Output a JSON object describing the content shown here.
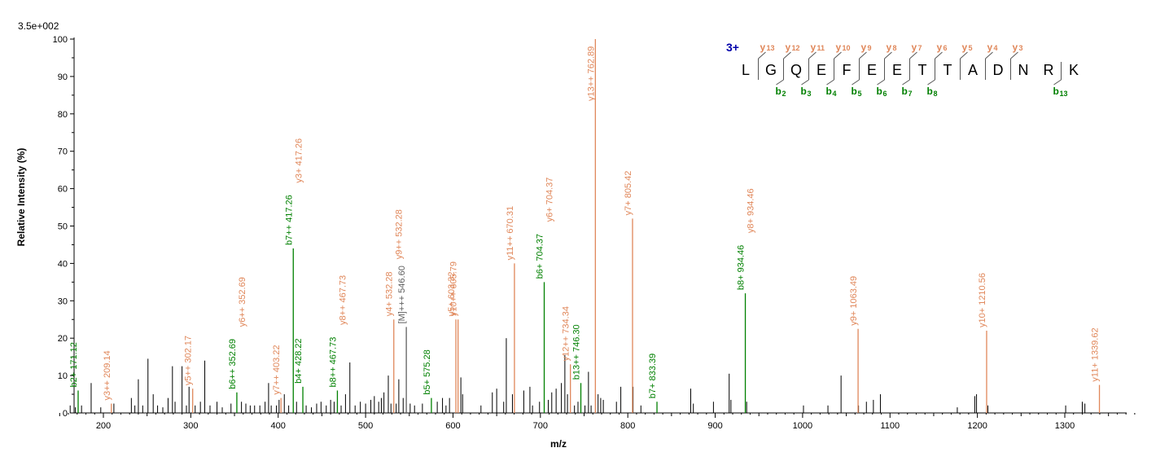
{
  "chart_data": {
    "type": "bar",
    "scale_label": "3.5e+002",
    "xlabel": "m/z",
    "ylabel": "Relative   Intensity (%)",
    "xlim": [
      145,
      1385
    ],
    "ylim": [
      0,
      100
    ],
    "xticks": [
      200,
      300,
      400,
      500,
      600,
      700,
      800,
      900,
      1000,
      1100,
      1200,
      1300
    ],
    "yticks": [
      0,
      10,
      20,
      30,
      40,
      50,
      60,
      70,
      80,
      90,
      100
    ],
    "colors": {
      "b": "#008000",
      "y": "#e0875a",
      "other": "#000000",
      "precursor": "#606060",
      "charge": "#0000aa"
    },
    "annotated_peaks": [
      {
        "mz": 171.12,
        "intensity": 6,
        "label": "b2+ 171.12",
        "ion": "b"
      },
      {
        "mz": 209.14,
        "intensity": 2.5,
        "label": "y3++ 209.14",
        "ion": "y"
      },
      {
        "mz": 302.17,
        "intensity": 6.5,
        "label": "y5++ 302.17",
        "ion": "y"
      },
      {
        "mz": 352.69,
        "intensity": 5.5,
        "label": "b6++ 352.69",
        "ion": "b"
      },
      {
        "mz": 352.69,
        "intensity": 5.5,
        "label": "y6++ 352.69",
        "ion": "y"
      },
      {
        "mz": 403.22,
        "intensity": 4,
        "label": "y7++ 403.22",
        "ion": "y"
      },
      {
        "mz": 417.26,
        "intensity": 44,
        "label": "b7++ 417.26",
        "ion": "b"
      },
      {
        "mz": 417.26,
        "intensity": 44,
        "label": "y3+ 417.26",
        "ion": "y"
      },
      {
        "mz": 428.22,
        "intensity": 7,
        "label": "b4+ 428.22",
        "ion": "b"
      },
      {
        "mz": 467.73,
        "intensity": 6,
        "label": "b8++ 467.73",
        "ion": "b"
      },
      {
        "mz": 467.73,
        "intensity": 6,
        "label": "y8++ 467.73",
        "ion": "y"
      },
      {
        "mz": 532.28,
        "intensity": 25,
        "label": "y4+ 532.28",
        "ion": "y"
      },
      {
        "mz": 532.28,
        "intensity": 25,
        "label": "y9++ 532.28",
        "ion": "y"
      },
      {
        "mz": 546.6,
        "intensity": 23,
        "label": "[M]+++ 546.60",
        "ion": "precursor"
      },
      {
        "mz": 575.28,
        "intensity": 4,
        "label": "b5+ 575.28",
        "ion": "b"
      },
      {
        "mz": 603.32,
        "intensity": 25,
        "label": "y5+ 603.32",
        "ion": "y"
      },
      {
        "mz": 605.79,
        "intensity": 25,
        "label": "y10++ 605.79",
        "ion": "y"
      },
      {
        "mz": 670.31,
        "intensity": 40,
        "label": "y11++ 670.31",
        "ion": "y"
      },
      {
        "mz": 704.37,
        "intensity": 35,
        "label": "b6+ 704.37",
        "ion": "b"
      },
      {
        "mz": 704.37,
        "intensity": 35,
        "label": "y6+ 704.37",
        "ion": "y"
      },
      {
        "mz": 734.34,
        "intensity": 13,
        "label": "y12++ 734.34",
        "ion": "y"
      },
      {
        "mz": 746.3,
        "intensity": 8,
        "label": "b13++ 746.30",
        "ion": "b"
      },
      {
        "mz": 762.89,
        "intensity": 100,
        "label": "y13++ 762.89",
        "ion": "y"
      },
      {
        "mz": 805.42,
        "intensity": 52,
        "label": "y7+ 805.42",
        "ion": "y"
      },
      {
        "mz": 833.39,
        "intensity": 3,
        "label": "b7+ 833.39",
        "ion": "b"
      },
      {
        "mz": 934.46,
        "intensity": 32,
        "label": "b8+ 934.46",
        "ion": "b"
      },
      {
        "mz": 934.46,
        "intensity": 32,
        "label": "y8+ 934.46",
        "ion": "y"
      },
      {
        "mz": 1063.49,
        "intensity": 22.5,
        "label": "y9+ 1063.49",
        "ion": "y"
      },
      {
        "mz": 1210.56,
        "intensity": 22,
        "label": "y10+ 1210.56",
        "ion": "y"
      },
      {
        "mz": 1339.62,
        "intensity": 7.5,
        "label": "y11+ 1339.62",
        "ion": "y"
      }
    ],
    "unlabeled_peaks": [
      [
        162,
        2
      ],
      [
        168,
        1.5
      ],
      [
        175,
        2
      ],
      [
        186,
        8
      ],
      [
        197,
        1.5
      ],
      [
        212,
        2.5
      ],
      [
        232,
        4
      ],
      [
        236,
        2
      ],
      [
        240,
        9
      ],
      [
        245,
        2
      ],
      [
        251,
        14.5
      ],
      [
        257,
        5
      ],
      [
        262,
        2
      ],
      [
        268,
        1.5
      ],
      [
        274,
        4
      ],
      [
        279,
        12.5
      ],
      [
        282,
        3
      ],
      [
        290,
        12.5
      ],
      [
        295,
        2
      ],
      [
        298,
        7
      ],
      [
        305,
        2
      ],
      [
        311,
        3
      ],
      [
        316,
        14
      ],
      [
        322,
        2
      ],
      [
        330,
        3
      ],
      [
        336,
        1.5
      ],
      [
        346,
        2.5
      ],
      [
        358,
        3
      ],
      [
        363,
        2.5
      ],
      [
        368,
        2
      ],
      [
        373,
        2
      ],
      [
        379,
        2
      ],
      [
        385,
        3
      ],
      [
        389,
        8
      ],
      [
        392,
        2
      ],
      [
        398,
        2
      ],
      [
        401,
        3.5
      ],
      [
        407,
        5
      ],
      [
        412,
        2
      ],
      [
        421,
        3
      ],
      [
        432,
        2
      ],
      [
        438,
        1.5
      ],
      [
        444,
        2.5
      ],
      [
        449,
        3
      ],
      [
        455,
        2
      ],
      [
        460,
        3.5
      ],
      [
        464,
        3
      ],
      [
        472,
        2
      ],
      [
        477,
        5
      ],
      [
        482,
        13.5
      ],
      [
        488,
        2
      ],
      [
        494,
        3
      ],
      [
        500,
        2.5
      ],
      [
        506,
        3.5
      ],
      [
        510,
        4.5
      ],
      [
        515,
        3
      ],
      [
        518,
        4
      ],
      [
        521,
        5.5
      ],
      [
        526,
        10
      ],
      [
        529,
        2.5
      ],
      [
        535,
        2.5
      ],
      [
        538,
        9
      ],
      [
        543,
        4
      ],
      [
        551,
        2.5
      ],
      [
        556,
        2
      ],
      [
        565,
        2.5
      ],
      [
        582,
        3
      ],
      [
        588,
        4
      ],
      [
        592,
        2
      ],
      [
        596,
        4
      ],
      [
        609,
        9.5
      ],
      [
        611,
        5
      ],
      [
        632,
        2
      ],
      [
        645,
        5.5
      ],
      [
        650,
        6.5
      ],
      [
        658,
        3
      ],
      [
        661,
        20
      ],
      [
        668,
        5
      ],
      [
        681,
        6
      ],
      [
        688,
        7
      ],
      [
        691,
        2
      ],
      [
        699,
        3
      ],
      [
        709,
        3.5
      ],
      [
        713,
        5.5
      ],
      [
        718,
        6.5
      ],
      [
        724,
        8
      ],
      [
        728,
        15.5
      ],
      [
        731,
        5
      ],
      [
        739,
        2
      ],
      [
        743,
        3
      ],
      [
        751,
        2
      ],
      [
        755,
        11
      ],
      [
        758,
        2
      ],
      [
        766,
        5
      ],
      [
        769,
        4
      ],
      [
        772,
        3.5
      ],
      [
        787,
        3
      ],
      [
        792,
        7
      ],
      [
        806,
        7
      ],
      [
        815,
        2
      ],
      [
        872,
        6.5
      ],
      [
        875,
        2.5
      ],
      [
        898,
        3
      ],
      [
        916,
        10.5
      ],
      [
        918,
        3.5
      ],
      [
        936,
        3
      ],
      [
        1001,
        2
      ],
      [
        1029,
        2
      ],
      [
        1044,
        10
      ],
      [
        1064,
        2
      ],
      [
        1073,
        3
      ],
      [
        1081,
        3.5
      ],
      [
        1089,
        5
      ],
      [
        1177,
        1.5
      ],
      [
        1197,
        4.5
      ],
      [
        1199,
        5
      ],
      [
        1212,
        2
      ],
      [
        1301,
        2
      ],
      [
        1320,
        3
      ],
      [
        1323,
        2.5
      ]
    ],
    "sequence": {
      "charge": "3+",
      "residues": [
        "L",
        "G",
        "Q",
        "E",
        "F",
        "E",
        "E",
        "T",
        "T",
        "A",
        "D",
        "N",
        "R",
        "K"
      ],
      "y_ions": [
        {
          "after": 1,
          "letter": "y",
          "num": "13"
        },
        {
          "after": 2,
          "letter": "y",
          "num": "12"
        },
        {
          "after": 3,
          "letter": "y",
          "num": "11"
        },
        {
          "after": 4,
          "letter": "y",
          "num": "10"
        },
        {
          "after": 5,
          "letter": "y",
          "num": "9"
        },
        {
          "after": 6,
          "letter": "y",
          "num": "8"
        },
        {
          "after": 7,
          "letter": "y",
          "num": "7"
        },
        {
          "after": 8,
          "letter": "y",
          "num": "6"
        },
        {
          "after": 9,
          "letter": "y",
          "num": "5"
        },
        {
          "after": 10,
          "letter": "y",
          "num": "4"
        },
        {
          "after": 11,
          "letter": "y",
          "num": "3"
        }
      ],
      "b_ions": [
        {
          "after": 2,
          "letter": "b",
          "num": "2"
        },
        {
          "after": 3,
          "letter": "b",
          "num": "3"
        },
        {
          "after": 4,
          "letter": "b",
          "num": "4"
        },
        {
          "after": 5,
          "letter": "b",
          "num": "5"
        },
        {
          "after": 6,
          "letter": "b",
          "num": "6"
        },
        {
          "after": 7,
          "letter": "b",
          "num": "7"
        },
        {
          "after": 8,
          "letter": "b",
          "num": "8"
        },
        {
          "after": 13,
          "letter": "b",
          "num": "13"
        }
      ]
    }
  }
}
